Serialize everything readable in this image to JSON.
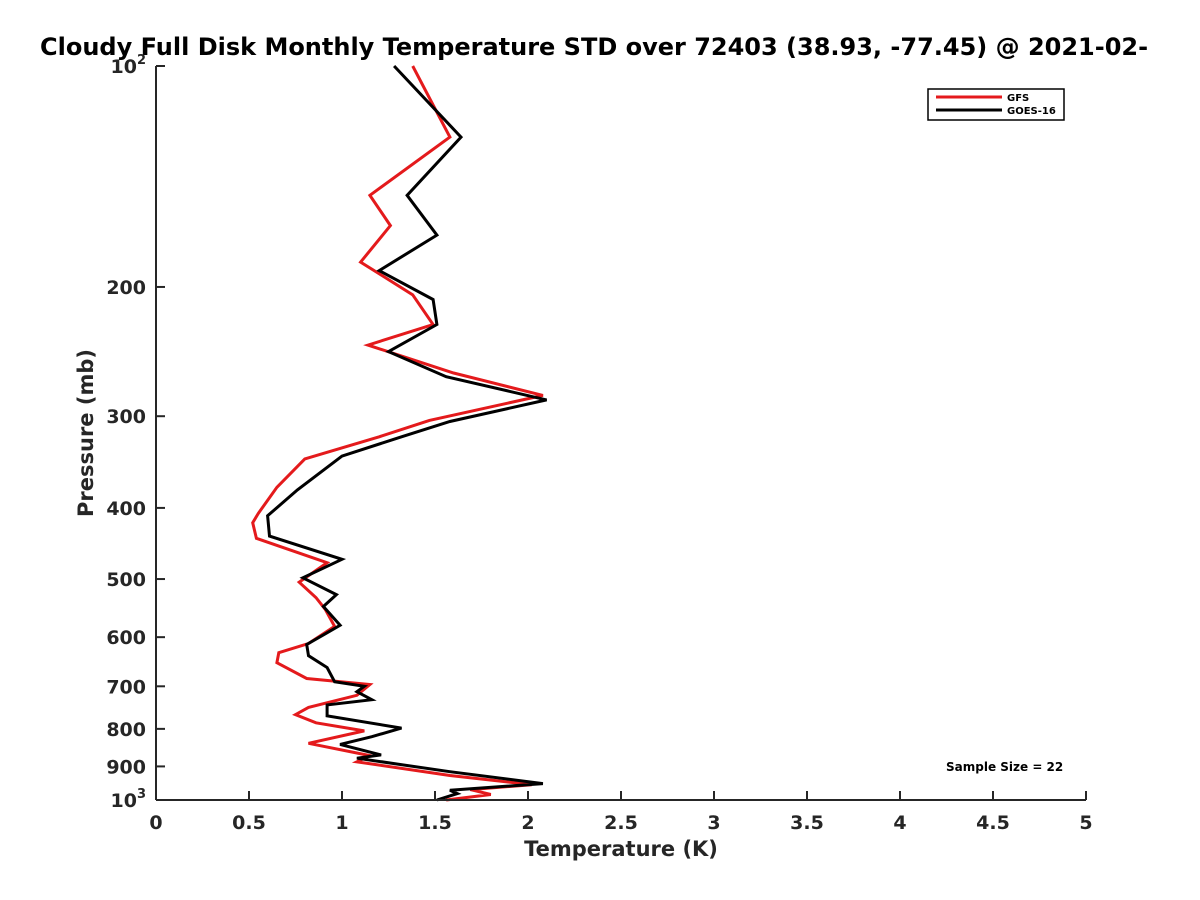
{
  "chart_data": {
    "type": "line",
    "title": "Cloudy Full Disk Monthly Temperature STD over 72403 (38.93, -77.45) @ 2021-02-",
    "xlabel": "Temperature (K)",
    "ylabel": "Pressure (mb)",
    "xlim": [
      0,
      5
    ],
    "ylim": [
      1000,
      100
    ],
    "y_scale": "log",
    "y_reversed": true,
    "x_ticks": [
      "0",
      "0.5",
      "1",
      "1.5",
      "2",
      "2.5",
      "3",
      "3.5",
      "4",
      "4.5",
      "5"
    ],
    "y_ticks": [
      {
        "value": 100,
        "base": "10",
        "exp": "2"
      },
      {
        "value": 200,
        "label": "200"
      },
      {
        "value": 300,
        "label": "300"
      },
      {
        "value": 400,
        "label": "400"
      },
      {
        "value": 500,
        "label": "500"
      },
      {
        "value": 600,
        "label": "600"
      },
      {
        "value": 700,
        "label": "700"
      },
      {
        "value": 800,
        "label": "800"
      },
      {
        "value": 900,
        "label": "900"
      },
      {
        "value": 1000,
        "base": "10",
        "exp": "3"
      }
    ],
    "grid": false,
    "legend_position": "top-right",
    "annotation": "Sample Size = 22",
    "series": [
      {
        "name": "GFS",
        "color": "#e41a1c",
        "points": [
          [
            1.38,
            100
          ],
          [
            1.58,
            125
          ],
          [
            1.15,
            150
          ],
          [
            1.26,
            165
          ],
          [
            1.1,
            185
          ],
          [
            1.38,
            205
          ],
          [
            1.49,
            225
          ],
          [
            1.14,
            240
          ],
          [
            1.6,
            262
          ],
          [
            2.08,
            281
          ],
          [
            1.47,
            304
          ],
          [
            1.2,
            320
          ],
          [
            0.8,
            343
          ],
          [
            0.65,
            375
          ],
          [
            0.55,
            407
          ],
          [
            0.52,
            419
          ],
          [
            0.54,
            440
          ],
          [
            0.92,
            475
          ],
          [
            0.77,
            505
          ],
          [
            0.86,
            530
          ],
          [
            0.91,
            550
          ],
          [
            0.96,
            580
          ],
          [
            0.82,
            612
          ],
          [
            0.66,
            630
          ],
          [
            0.65,
            650
          ],
          [
            0.81,
            683
          ],
          [
            1.15,
            696
          ],
          [
            1.08,
            720
          ],
          [
            0.82,
            748
          ],
          [
            0.75,
            765
          ],
          [
            0.86,
            785
          ],
          [
            1.12,
            805
          ],
          [
            0.82,
            837
          ],
          [
            1.15,
            870
          ],
          [
            1.08,
            887
          ],
          [
            1.58,
            926
          ],
          [
            2.02,
            953
          ],
          [
            1.69,
            968
          ],
          [
            1.8,
            983
          ],
          [
            1.56,
            1000
          ]
        ]
      },
      {
        "name": "GOES-16",
        "color": "#000000",
        "points": [
          [
            1.28,
            100
          ],
          [
            1.64,
            125
          ],
          [
            1.35,
            150
          ],
          [
            1.51,
            170
          ],
          [
            1.2,
            190
          ],
          [
            1.49,
            208
          ],
          [
            1.51,
            225
          ],
          [
            1.25,
            245
          ],
          [
            1.56,
            265
          ],
          [
            2.1,
            285
          ],
          [
            1.58,
            305
          ],
          [
            1.32,
            320
          ],
          [
            1.0,
            340
          ],
          [
            0.76,
            378
          ],
          [
            0.6,
            410
          ],
          [
            0.61,
            437
          ],
          [
            1.0,
            470
          ],
          [
            0.79,
            498
          ],
          [
            0.97,
            525
          ],
          [
            0.9,
            545
          ],
          [
            0.99,
            578
          ],
          [
            0.81,
            614
          ],
          [
            0.82,
            636
          ],
          [
            0.92,
            660
          ],
          [
            0.96,
            690
          ],
          [
            1.12,
            700
          ],
          [
            1.08,
            712
          ],
          [
            1.16,
            730
          ],
          [
            0.92,
            742
          ],
          [
            0.92,
            768
          ],
          [
            1.32,
            798
          ],
          [
            1.16,
            820
          ],
          [
            0.99,
            840
          ],
          [
            1.21,
            868
          ],
          [
            1.08,
            877
          ],
          [
            1.58,
            915
          ],
          [
            2.08,
            950
          ],
          [
            1.58,
            970
          ],
          [
            1.62,
            980
          ],
          [
            1.51,
            1000
          ]
        ]
      }
    ]
  }
}
